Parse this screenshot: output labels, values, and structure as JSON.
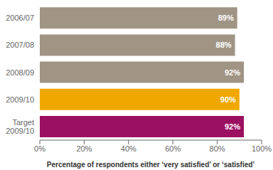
{
  "chart_data": {
    "type": "bar",
    "orientation": "horizontal",
    "categories": [
      "2006/07",
      "2007/08",
      "2008/09",
      "2009/10",
      "Target\n2009/10"
    ],
    "values": [
      89,
      88,
      92,
      90,
      92
    ],
    "value_labels": [
      "89%",
      "88%",
      "92%",
      "90%",
      "92%"
    ],
    "colors": [
      "#a09585",
      "#a09585",
      "#a09585",
      "#f0a800",
      "#9b1060"
    ],
    "xlabel": "Percentage of respondents either ‘very satisfied’ or ‘satisfied’",
    "xlim": [
      0,
      100
    ],
    "xticks": [
      {
        "value": 0,
        "label": "0%"
      },
      {
        "value": 20,
        "label": "20%"
      },
      {
        "value": 40,
        "label": "40%"
      },
      {
        "value": 60,
        "label": "60%"
      },
      {
        "value": 80,
        "label": "80%"
      },
      {
        "value": 100,
        "label": "100%"
      }
    ],
    "grid": false,
    "data_labels": true
  }
}
